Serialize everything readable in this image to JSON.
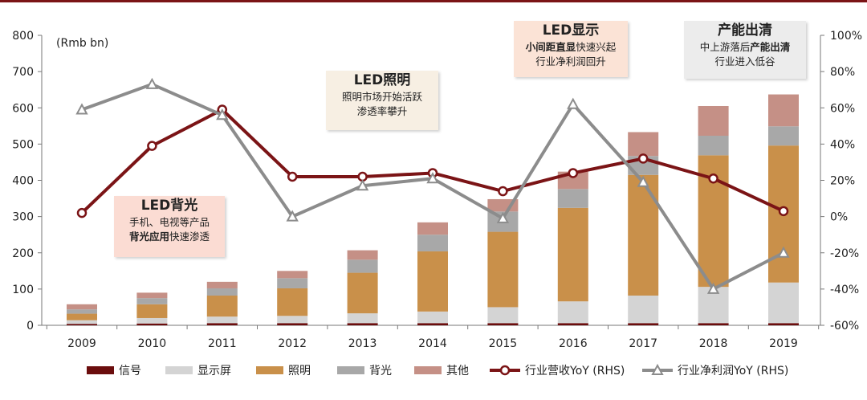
{
  "chart_data": {
    "type": "bar",
    "stacked": true,
    "y_unit_label": "(Rmb bn)",
    "categories": [
      "2009",
      "2010",
      "2011",
      "2012",
      "2013",
      "2014",
      "2015",
      "2016",
      "2017",
      "2018",
      "2019"
    ],
    "ylim": [
      0,
      800
    ],
    "yticks": [
      "0",
      "100",
      "200",
      "300",
      "400",
      "500",
      "600",
      "700",
      "800"
    ],
    "y2lim": [
      -60,
      100
    ],
    "y2ticks": [
      "-60%",
      "-40%",
      "-20%",
      "0%",
      "20%",
      "40%",
      "60%",
      "80%",
      "100%"
    ],
    "series": [
      {
        "name": "信号",
        "color": "#6b0d0d",
        "values": [
          4,
          5,
          6,
          6,
          6,
          6,
          6,
          6,
          6,
          6,
          6
        ]
      },
      {
        "name": "显示屏",
        "color": "#d4d4d4",
        "values": [
          10,
          15,
          18,
          20,
          27,
          32,
          44,
          60,
          76,
          100,
          112
        ]
      },
      {
        "name": "照明",
        "color": "#c9904a",
        "values": [
          18,
          38,
          58,
          76,
          112,
          166,
          208,
          258,
          333,
          363,
          378
        ]
      },
      {
        "name": "背光",
        "color": "#a8a8a8",
        "values": [
          12,
          17,
          20,
          28,
          36,
          46,
          56,
          52,
          52,
          54,
          53
        ]
      },
      {
        "name": "其他",
        "color": "#c59086",
        "values": [
          14,
          15,
          18,
          20,
          26,
          34,
          34,
          48,
          66,
          82,
          88
        ]
      }
    ],
    "lines": [
      {
        "name": "行业营收YoY (RHS)",
        "color": "#7b1416",
        "marker": "circle",
        "values": [
          2,
          39,
          59,
          22,
          22,
          24,
          14,
          24,
          32,
          21,
          3
        ]
      },
      {
        "name": "行业净利润YoY (RHS)",
        "color": "#8c8c8c",
        "marker": "triangle",
        "values": [
          59,
          73,
          56,
          0,
          17,
          21,
          -1,
          62,
          19,
          -40,
          -20
        ]
      }
    ],
    "legend_position": "bottom"
  },
  "annotations": {
    "backlight": {
      "title": "LED背光",
      "line1": "手机、电视等产品",
      "line2_bold": "背光应用",
      "line2_rest": "快速渗透"
    },
    "lighting": {
      "title": "LED照明",
      "line1": "照明市场开始活跃",
      "line2": "渗透率攀升"
    },
    "display": {
      "title": "LED显示",
      "line1_bold": "小间距直显",
      "line1_rest": "快速兴起",
      "line2": "行业净利润回升"
    },
    "capacity": {
      "title": "产能出清",
      "line1_rest": "中上游落后",
      "line1_bold": "产能出清",
      "line2": "行业进入低谷"
    }
  }
}
